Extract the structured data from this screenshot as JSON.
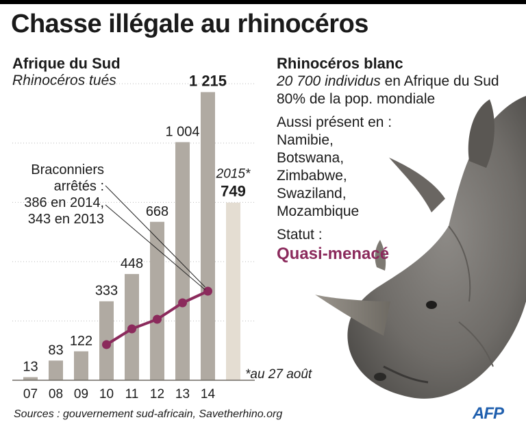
{
  "title": "Chasse illégale au rhinocéros",
  "left_panel": {
    "region": "Afrique du Sud",
    "metric": "Rhinocéros tués"
  },
  "chart_data": {
    "type": "bar",
    "categories": [
      "07",
      "08",
      "09",
      "10",
      "11",
      "12",
      "13",
      "14",
      "2015*"
    ],
    "values": [
      13,
      83,
      122,
      333,
      448,
      668,
      1004,
      1215,
      749
    ],
    "value_labels": [
      "13",
      "83",
      "122",
      "333",
      "448",
      "668",
      "1 004",
      "1 215",
      "749"
    ],
    "highlight_category_label": "2015*",
    "ylim": [
      0,
      1300
    ],
    "grid": "dotted horizontal",
    "annotation": {
      "lines": [
        "Braconniers",
        "arrêtés :",
        "386 en 2014,",
        "343 en 2013"
      ]
    },
    "line_series": {
      "x": [
        "10",
        "11",
        "12",
        "13",
        "14"
      ]
    },
    "footnote": "*au 27 août",
    "colors": {
      "bar": "#b0aaa2",
      "bar_2015": "#e4ddd2",
      "line": "#8b2a5c",
      "grid": "#b9b9b9"
    }
  },
  "right_panel": {
    "heading": "Rhinocéros blanc",
    "population_italic": "20 700 individus",
    "population_rest": " en Afrique du Sud",
    "share": "80% de la pop. mondiale",
    "also_label": "Aussi présent en :",
    "countries": [
      "Namibie,",
      "Botswana,",
      "Zimbabwe,",
      "Swaziland,",
      "Mozambique"
    ],
    "status_label": "Statut :",
    "status_value": "Quasi-menacé"
  },
  "sources": "Sources : gouvernement sud-africain, Savetherhino.org",
  "logo": "AFP",
  "image_icon": "rhino-head-icon"
}
